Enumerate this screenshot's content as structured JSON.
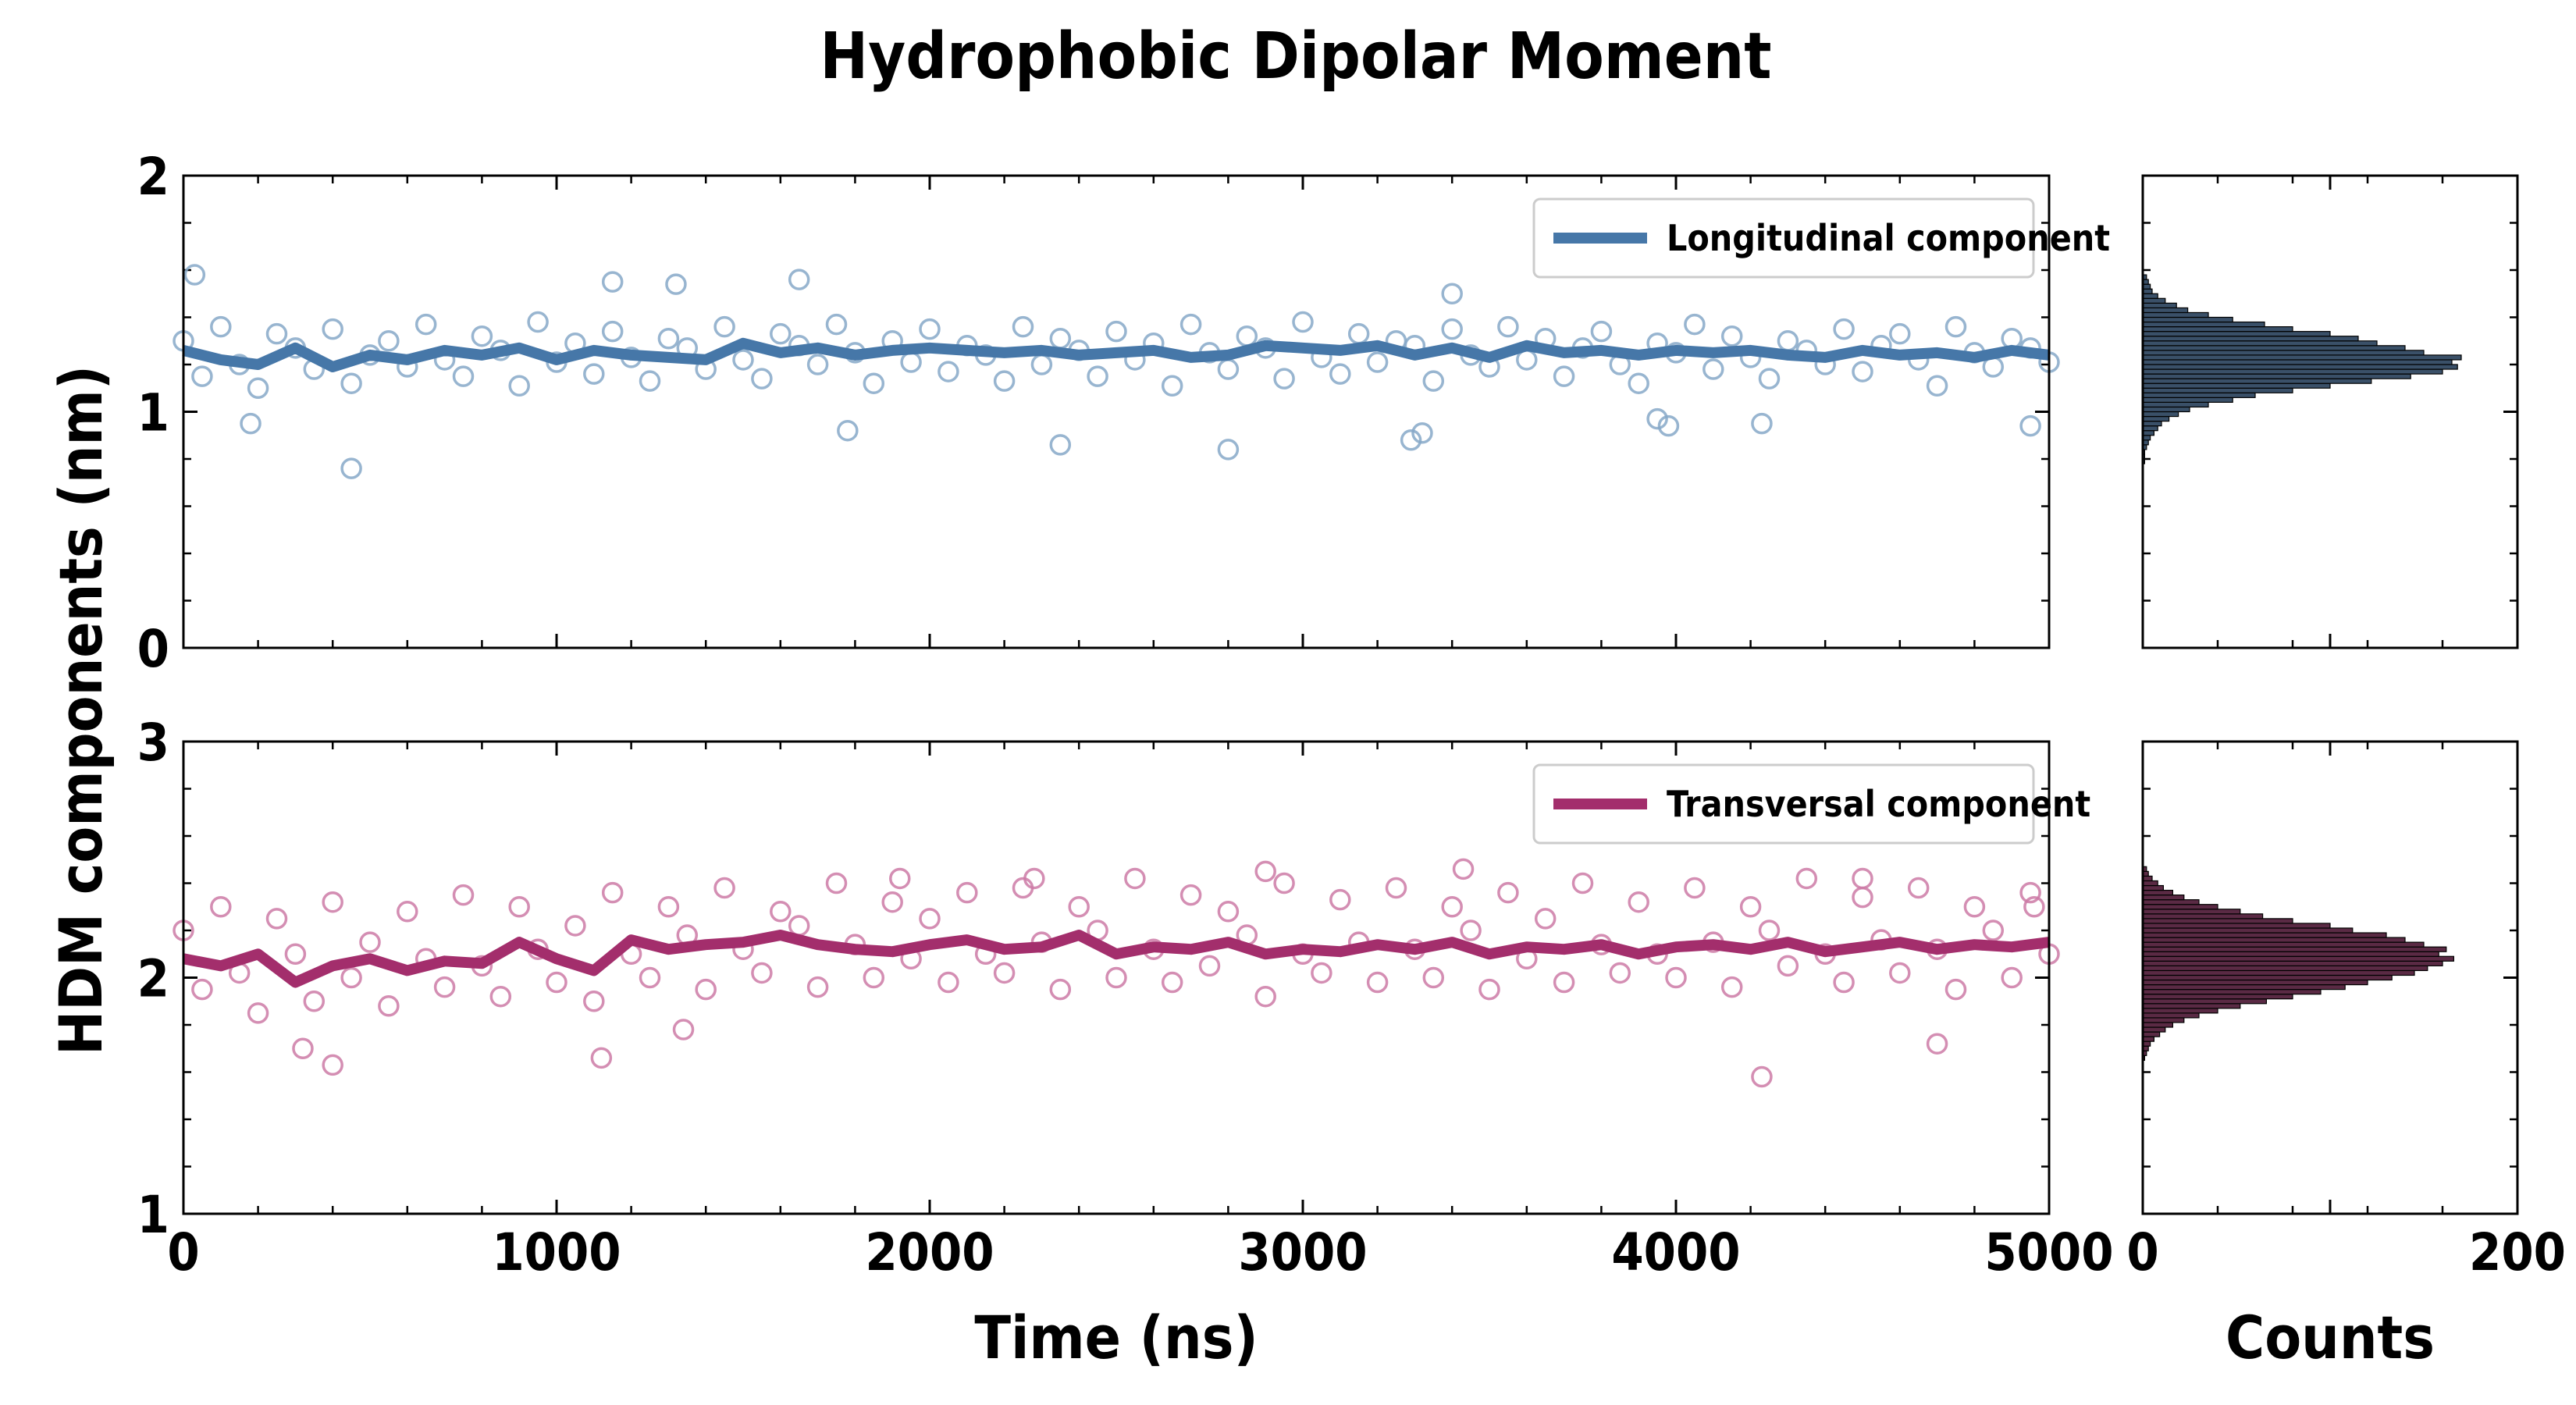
{
  "figure": {
    "title": "Hydrophobic Dipolar Moment",
    "ylabel": "HDM components (nm)"
  },
  "chart_data": [
    {
      "type": "scatter",
      "panel": "longitudinal-time-series",
      "xlabel": "",
      "ylabel": "",
      "xlim": [
        0,
        5000
      ],
      "ylim": [
        0,
        2
      ],
      "x_ticks": [
        "",
        "",
        "",
        "",
        "",
        ""
      ],
      "y_ticks": [
        "0",
        "1",
        "2"
      ],
      "grid": false,
      "legend": {
        "placement": "top-right",
        "entries": [
          "Longitudinal component"
        ]
      },
      "color": "#4677a8",
      "points_color": "#86a8c8",
      "series": [
        {
          "name": "Longitudinal component",
          "style": "line",
          "x": [
            0,
            100,
            200,
            300,
            400,
            500,
            600,
            700,
            800,
            900,
            1000,
            1100,
            1200,
            1300,
            1400,
            1500,
            1600,
            1700,
            1800,
            1900,
            2000,
            2100,
            2200,
            2300,
            2400,
            2500,
            2600,
            2700,
            2800,
            2900,
            3000,
            3100,
            3200,
            3300,
            3400,
            3500,
            3600,
            3700,
            3800,
            3900,
            4000,
            4100,
            4200,
            4300,
            4400,
            4500,
            4600,
            4700,
            4800,
            4900,
            5000
          ],
          "y": [
            1.26,
            1.22,
            1.2,
            1.27,
            1.19,
            1.24,
            1.22,
            1.26,
            1.24,
            1.27,
            1.22,
            1.26,
            1.24,
            1.23,
            1.22,
            1.29,
            1.25,
            1.27,
            1.24,
            1.26,
            1.27,
            1.26,
            1.25,
            1.26,
            1.24,
            1.25,
            1.26,
            1.23,
            1.24,
            1.28,
            1.27,
            1.26,
            1.28,
            1.24,
            1.27,
            1.23,
            1.28,
            1.25,
            1.26,
            1.24,
            1.26,
            1.25,
            1.26,
            1.24,
            1.23,
            1.26,
            1.24,
            1.25,
            1.23,
            1.26,
            1.24
          ]
        },
        {
          "name": "",
          "style": "points",
          "x": [
            0,
            50,
            100,
            150,
            200,
            250,
            300,
            350,
            400,
            450,
            500,
            550,
            600,
            650,
            700,
            750,
            800,
            850,
            900,
            950,
            1000,
            1050,
            1100,
            1150,
            1200,
            1250,
            1300,
            1350,
            1400,
            1450,
            1500,
            1550,
            1600,
            1650,
            1700,
            1750,
            1800,
            1850,
            1900,
            1950,
            2000,
            2050,
            2100,
            2150,
            2200,
            2250,
            2300,
            2350,
            2400,
            2450,
            2500,
            2550,
            2600,
            2650,
            2700,
            2750,
            2800,
            2850,
            2900,
            2950,
            3000,
            3050,
            3100,
            3150,
            3200,
            3250,
            3300,
            3350,
            3400,
            3450,
            3500,
            3550,
            3600,
            3650,
            3700,
            3750,
            3800,
            3850,
            3900,
            3950,
            4000,
            4050,
            4100,
            4150,
            4200,
            4250,
            4300,
            4350,
            4400,
            4450,
            4500,
            4550,
            4600,
            4650,
            4700,
            4750,
            4800,
            4850,
            4900,
            4950,
            5000,
            30,
            180,
            450,
            1150,
            1320,
            1650,
            1780,
            2350,
            2800,
            3290,
            3320,
            3400,
            3950,
            3980,
            4230,
            4950
          ],
          "y": [
            1.3,
            1.15,
            1.36,
            1.2,
            1.1,
            1.33,
            1.27,
            1.18,
            1.35,
            1.12,
            1.24,
            1.3,
            1.19,
            1.37,
            1.22,
            1.15,
            1.32,
            1.26,
            1.11,
            1.38,
            1.21,
            1.29,
            1.16,
            1.34,
            1.23,
            1.13,
            1.31,
            1.27,
            1.18,
            1.36,
            1.22,
            1.14,
            1.33,
            1.28,
            1.2,
            1.37,
            1.25,
            1.12,
            1.3,
            1.21,
            1.35,
            1.17,
            1.28,
            1.24,
            1.13,
            1.36,
            1.2,
            1.31,
            1.26,
            1.15,
            1.34,
            1.22,
            1.29,
            1.11,
            1.37,
            1.25,
            1.18,
            1.32,
            1.27,
            1.14,
            1.38,
            1.23,
            1.16,
            1.33,
            1.21,
            1.3,
            1.28,
            1.13,
            1.35,
            1.24,
            1.19,
            1.36,
            1.22,
            1.31,
            1.15,
            1.27,
            1.34,
            1.2,
            1.12,
            1.29,
            1.25,
            1.37,
            1.18,
            1.32,
            1.23,
            1.14,
            1.3,
            1.26,
            1.2,
            1.35,
            1.17,
            1.28,
            1.33,
            1.22,
            1.11,
            1.36,
            1.25,
            1.19,
            1.31,
            1.27,
            1.21,
            1.58,
            0.95,
            0.76,
            1.55,
            1.54,
            1.56,
            0.92,
            0.86,
            0.84,
            0.88,
            0.91,
            1.5,
            0.97,
            0.94,
            0.95,
            0.94
          ]
        }
      ]
    },
    {
      "type": "bar",
      "panel": "longitudinal-histogram",
      "orientation": "horizontal",
      "xlabel": "",
      "xlim": [
        0,
        200
      ],
      "ylim": [
        0,
        2
      ],
      "x_ticks": [
        "",
        ""
      ],
      "color": "#3a5068",
      "bins_y": [
        0.79,
        0.81,
        0.83,
        0.85,
        0.87,
        0.89,
        0.91,
        0.93,
        0.95,
        0.97,
        0.99,
        1.01,
        1.03,
        1.05,
        1.07,
        1.09,
        1.11,
        1.13,
        1.15,
        1.17,
        1.19,
        1.21,
        1.23,
        1.25,
        1.27,
        1.29,
        1.31,
        1.33,
        1.35,
        1.37,
        1.39,
        1.41,
        1.43,
        1.45,
        1.47,
        1.49,
        1.51,
        1.53,
        1.55,
        1.57
      ],
      "counts": [
        1,
        1,
        1,
        2,
        3,
        4,
        6,
        8,
        10,
        14,
        19,
        25,
        35,
        48,
        60,
        80,
        100,
        122,
        143,
        160,
        168,
        165,
        170,
        150,
        140,
        125,
        115,
        100,
        80,
        65,
        48,
        35,
        24,
        18,
        12,
        8,
        5,
        4,
        3,
        2
      ]
    },
    {
      "type": "scatter",
      "panel": "transversal-time-series",
      "xlabel": "Time (ns)",
      "ylabel": "",
      "xlim": [
        0,
        5000
      ],
      "ylim": [
        1,
        3
      ],
      "x_ticks": [
        "0",
        "1000",
        "2000",
        "3000",
        "4000",
        "5000"
      ],
      "y_ticks": [
        "1",
        "2",
        "3"
      ],
      "grid": false,
      "legend": {
        "placement": "top-right",
        "entries": [
          "Transversal component"
        ]
      },
      "color": "#a32e6c",
      "points_color": "#cc7aa6",
      "series": [
        {
          "name": "Transversal component",
          "style": "line",
          "x": [
            0,
            100,
            200,
            300,
            400,
            500,
            600,
            700,
            800,
            900,
            1000,
            1100,
            1200,
            1300,
            1400,
            1500,
            1600,
            1700,
            1800,
            1900,
            2000,
            2100,
            2200,
            2300,
            2400,
            2500,
            2600,
            2700,
            2800,
            2900,
            3000,
            3100,
            3200,
            3300,
            3400,
            3500,
            3600,
            3700,
            3800,
            3900,
            4000,
            4100,
            4200,
            4300,
            4400,
            4500,
            4600,
            4700,
            4800,
            4900,
            5000
          ],
          "y": [
            2.08,
            2.05,
            2.1,
            1.98,
            2.05,
            2.08,
            2.03,
            2.07,
            2.06,
            2.15,
            2.08,
            2.03,
            2.16,
            2.12,
            2.14,
            2.15,
            2.18,
            2.14,
            2.12,
            2.11,
            2.14,
            2.16,
            2.12,
            2.13,
            2.18,
            2.1,
            2.13,
            2.12,
            2.15,
            2.1,
            2.12,
            2.11,
            2.14,
            2.12,
            2.15,
            2.1,
            2.13,
            2.12,
            2.14,
            2.1,
            2.13,
            2.14,
            2.12,
            2.15,
            2.11,
            2.13,
            2.15,
            2.12,
            2.14,
            2.13,
            2.15
          ]
        },
        {
          "name": "",
          "style": "points",
          "x": [
            0,
            50,
            100,
            150,
            200,
            250,
            300,
            350,
            400,
            450,
            500,
            550,
            600,
            650,
            700,
            750,
            800,
            850,
            900,
            950,
            1000,
            1050,
            1100,
            1150,
            1200,
            1250,
            1300,
            1350,
            1400,
            1450,
            1500,
            1550,
            1600,
            1650,
            1700,
            1750,
            1800,
            1850,
            1900,
            1950,
            2000,
            2050,
            2100,
            2150,
            2200,
            2250,
            2300,
            2350,
            2400,
            2450,
            2500,
            2550,
            2600,
            2650,
            2700,
            2750,
            2800,
            2850,
            2900,
            2950,
            3000,
            3050,
            3100,
            3150,
            3200,
            3250,
            3300,
            3350,
            3400,
            3450,
            3500,
            3550,
            3600,
            3650,
            3700,
            3750,
            3800,
            3850,
            3900,
            3950,
            4000,
            4050,
            4100,
            4150,
            4200,
            4250,
            4300,
            4350,
            4400,
            4450,
            4500,
            4550,
            4600,
            4650,
            4700,
            4750,
            4800,
            4850,
            4900,
            4950,
            5000,
            320,
            400,
            1120,
            1340,
            1920,
            2280,
            2900,
            3430,
            4230,
            4500,
            4700,
            4960
          ],
          "y": [
            2.2,
            1.95,
            2.3,
            2.02,
            1.85,
            2.25,
            2.1,
            1.9,
            2.32,
            2.0,
            2.15,
            1.88,
            2.28,
            2.08,
            1.96,
            2.35,
            2.05,
            1.92,
            2.3,
            2.12,
            1.98,
            2.22,
            1.9,
            2.36,
            2.1,
            2.0,
            2.3,
            2.18,
            1.95,
            2.38,
            2.12,
            2.02,
            2.28,
            2.22,
            1.96,
            2.4,
            2.14,
            2.0,
            2.32,
            2.08,
            2.25,
            1.98,
            2.36,
            2.1,
            2.02,
            2.38,
            2.15,
            1.95,
            2.3,
            2.2,
            2.0,
            2.42,
            2.12,
            1.98,
            2.35,
            2.05,
            2.28,
            2.18,
            1.92,
            2.4,
            2.1,
            2.02,
            2.33,
            2.15,
            1.98,
            2.38,
            2.12,
            2.0,
            2.3,
            2.2,
            1.95,
            2.36,
            2.08,
            2.25,
            1.98,
            2.4,
            2.14,
            2.02,
            2.32,
            2.1,
            2.0,
            2.38,
            2.15,
            1.96,
            2.3,
            2.2,
            2.05,
            2.42,
            2.1,
            1.98,
            2.34,
            2.16,
            2.02,
            2.38,
            2.12,
            1.95,
            2.3,
            2.2,
            2.0,
            2.36,
            2.1,
            1.7,
            1.63,
            1.66,
            1.78,
            2.42,
            2.42,
            2.45,
            2.46,
            1.58,
            2.42,
            1.72,
            2.3
          ]
        }
      ]
    },
    {
      "type": "bar",
      "panel": "transversal-histogram",
      "orientation": "horizontal",
      "xlabel": "Counts",
      "xlim": [
        0,
        200
      ],
      "ylim": [
        1,
        3
      ],
      "x_ticks": [
        "0",
        "200"
      ],
      "color": "#5a2a44",
      "bins_y": [
        1.66,
        1.68,
        1.7,
        1.72,
        1.74,
        1.76,
        1.78,
        1.8,
        1.82,
        1.84,
        1.86,
        1.88,
        1.9,
        1.92,
        1.94,
        1.96,
        1.98,
        2.0,
        2.02,
        2.04,
        2.06,
        2.08,
        2.1,
        2.12,
        2.14,
        2.16,
        2.18,
        2.2,
        2.22,
        2.24,
        2.26,
        2.28,
        2.3,
        2.32,
        2.34,
        2.36,
        2.38,
        2.4,
        2.42,
        2.44,
        2.46
      ],
      "counts": [
        1,
        2,
        3,
        4,
        6,
        9,
        12,
        16,
        22,
        30,
        40,
        52,
        66,
        80,
        95,
        108,
        120,
        133,
        145,
        152,
        160,
        166,
        158,
        162,
        150,
        140,
        130,
        112,
        100,
        80,
        64,
        52,
        40,
        30,
        22,
        16,
        11,
        8,
        5,
        3,
        2
      ]
    }
  ]
}
